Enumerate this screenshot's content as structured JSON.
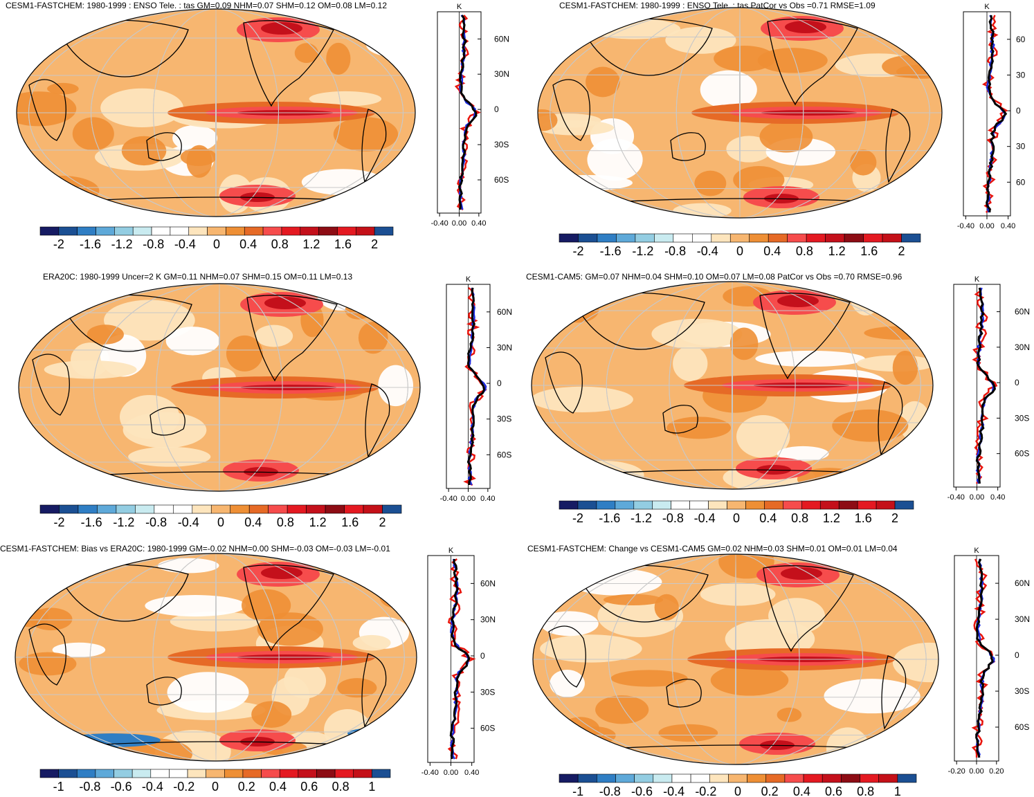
{
  "colors": {
    "scale": [
      "#161b63",
      "#1b4f93",
      "#2f7ec4",
      "#5ea9d9",
      "#93cde2",
      "#c9ebf0",
      "#ffffff",
      "#ffffff",
      "#fde5bd",
      "#f7b670",
      "#ee8f35",
      "#e66a26",
      "#f64c4c",
      "#e41921",
      "#c4101b",
      "#8d0c14",
      "#e41921",
      "#c41018",
      "#1b4f93"
    ],
    "land": "#000000",
    "grid": "#c8c8c8",
    "line_red": "#e8140c",
    "line_blue": "#1a2be0",
    "line_black": "#000000"
  },
  "panels": [
    {
      "title": "CESM1-FASTCHEM: 1980-1999 : ENSO Tele. : tas GM=0.09 NHM=0.07 SHM=0.12 OM=0.08 LM=0.12",
      "colorbar_labels": [
        "-2",
        "-1.6",
        "-1.2",
        "-0.8",
        "-0.4",
        "0",
        "0.4",
        "0.8",
        "1.2",
        "1.6",
        "2"
      ],
      "profile_unit": "K",
      "profile_xticks": [
        "-0.40",
        "0.00",
        "0.40"
      ],
      "lat_labels": [
        "60N",
        "30N",
        "0",
        "30S",
        "60S"
      ]
    },
    {
      "title": "CESM1-FASTCHEM: 1980-1999 : ENSO Tele. : tas PatCor vs Obs =0.71 RMSE=1.09",
      "colorbar_labels": [
        "-2",
        "-1.6",
        "-1.2",
        "-0.8",
        "-0.4",
        "0",
        "0.4",
        "0.8",
        "1.2",
        "1.6",
        "2"
      ],
      "profile_unit": "K",
      "profile_xticks": [
        "-0.40",
        "0.00",
        "0.40"
      ],
      "lat_labels": [
        "60",
        "30",
        "0",
        "30",
        "60"
      ]
    },
    {
      "title": "ERA20C: 1980-1999 Uncer=2 K GM=0.11 NHM=0.07 SHM=0.15 OM=0.11 LM=0.13",
      "colorbar_labels": [
        "-2",
        "-1.6",
        "-1.2",
        "-0.8",
        "-0.4",
        "0",
        "0.4",
        "0.8",
        "1.2",
        "1.6",
        "2"
      ],
      "profile_unit": "K",
      "profile_xticks": [
        "-0.40",
        "0.00",
        "0.40"
      ],
      "lat_labels": [
        "60N",
        "30N",
        "0",
        "30S",
        "60S"
      ]
    },
    {
      "title": "CESM1-CAM5: GM=0.07 NHM=0.04 SHM=0.10 OM=0.07 LM=0.08 PatCor vs Obs =0.70 RMSE=0.96",
      "colorbar_labels": [
        "-2",
        "-1.6",
        "-1.2",
        "-0.8",
        "-0.4",
        "0",
        "0.4",
        "0.8",
        "1.2",
        "1.6",
        "2"
      ],
      "profile_unit": "K",
      "profile_xticks": [
        "-0.40",
        "0.00",
        "0.40"
      ],
      "lat_labels": [
        "60N",
        "30N",
        "0",
        "30S",
        "60S"
      ]
    },
    {
      "title": "CESM1-FASTCHEM: Bias vs ERA20C: 1980-1999 GM=-0.02 NHM=0.00 SHM=-0.03 OM=-0.03 LM=-0.01",
      "colorbar_labels": [
        "-1",
        "-0.8",
        "-0.6",
        "-0.4",
        "-0.2",
        "0",
        "0.2",
        "0.4",
        "0.6",
        "0.8",
        "1"
      ],
      "profile_unit": "K",
      "profile_xticks": [
        "-0.40",
        "0.00",
        "0.40"
      ],
      "lat_labels": [
        "60N",
        "30N",
        "0",
        "30S",
        "60S"
      ]
    },
    {
      "title": "CESM1-FASTCHEM: Change vs CESM1-CAM5 GM=0.02 NHM=0.03 SHM=0.01 OM=0.01 LM=0.04",
      "colorbar_labels": [
        "-1",
        "-0.8",
        "-0.6",
        "-0.4",
        "-0.2",
        "0",
        "0.2",
        "0.4",
        "0.6",
        "0.8",
        "1"
      ],
      "profile_unit": "K",
      "profile_xticks": [
        "-0.20",
        "0.00",
        "0.20"
      ],
      "lat_labels": [
        "60N",
        "30N",
        "0",
        "30S",
        "60S"
      ]
    }
  ],
  "chart_data": [
    {
      "type": "heatmap",
      "title": "CESM1-FASTCHEM: 1980-1999 : ENSO Tele. : tas GM=0.09 NHM=0.07 SHM=0.12 OM=0.08 LM=0.12",
      "colorbar": {
        "min": -2,
        "max": 2,
        "ticks": [
          -2,
          -1.6,
          -1.2,
          -0.8,
          -0.4,
          0,
          0.4,
          0.8,
          1.2,
          1.6,
          2
        ]
      },
      "zonal_profile": {
        "unit": "K",
        "xlim": [
          -0.4,
          0.4
        ],
        "series_colors": [
          "red",
          "blue",
          "black"
        ]
      }
    },
    {
      "type": "heatmap",
      "title": "CESM1-FASTCHEM: 1980-1999 : ENSO Tele. : tas PatCor vs Obs =0.71 RMSE=1.09",
      "colorbar": {
        "min": -2,
        "max": 2,
        "ticks": [
          -2,
          -1.6,
          -1.2,
          -0.8,
          -0.4,
          0,
          0.4,
          0.8,
          1.2,
          1.6,
          2
        ]
      },
      "zonal_profile": {
        "unit": "K",
        "xlim": [
          -0.4,
          0.4
        ],
        "series_colors": [
          "red",
          "blue",
          "black"
        ]
      }
    },
    {
      "type": "heatmap",
      "title": "ERA20C: 1980-1999 Uncer=2 K GM=0.11 NHM=0.07 SHM=0.15 OM=0.11 LM=0.13",
      "colorbar": {
        "min": -2,
        "max": 2,
        "ticks": [
          -2,
          -1.6,
          -1.2,
          -0.8,
          -0.4,
          0,
          0.4,
          0.8,
          1.2,
          1.6,
          2
        ]
      },
      "zonal_profile": {
        "unit": "K",
        "xlim": [
          -0.4,
          0.4
        ],
        "series_colors": [
          "red",
          "blue",
          "black"
        ]
      }
    },
    {
      "type": "heatmap",
      "title": "CESM1-CAM5: GM=0.07 NHM=0.04 SHM=0.10 OM=0.07 LM=0.08 PatCor vs Obs =0.70 RMSE=0.96",
      "colorbar": {
        "min": -2,
        "max": 2,
        "ticks": [
          -2,
          -1.6,
          -1.2,
          -0.8,
          -0.4,
          0,
          0.4,
          0.8,
          1.2,
          1.6,
          2
        ]
      },
      "zonal_profile": {
        "unit": "K",
        "xlim": [
          -0.4,
          0.4
        ],
        "series_colors": [
          "red",
          "blue",
          "black"
        ]
      }
    },
    {
      "type": "heatmap",
      "title": "CESM1-FASTCHEM: Bias vs ERA20C: 1980-1999 GM=-0.02 NHM=0.00 SHM=-0.03 OM=-0.03 LM=-0.01",
      "colorbar": {
        "min": -1,
        "max": 1,
        "ticks": [
          -1,
          -0.8,
          -0.6,
          -0.4,
          -0.2,
          0,
          0.2,
          0.4,
          0.6,
          0.8,
          1
        ]
      },
      "zonal_profile": {
        "unit": "K",
        "xlim": [
          -0.4,
          0.4
        ],
        "series_colors": [
          "red",
          "blue",
          "black"
        ]
      }
    },
    {
      "type": "heatmap",
      "title": "CESM1-FASTCHEM: Change vs CESM1-CAM5 GM=0.02 NHM=0.03 SHM=0.01 OM=0.01 LM=0.04",
      "colorbar": {
        "min": -1,
        "max": 1,
        "ticks": [
          -1,
          -0.8,
          -0.6,
          -0.4,
          -0.2,
          0,
          0.2,
          0.4,
          0.6,
          0.8,
          1
        ]
      },
      "zonal_profile": {
        "unit": "K",
        "xlim": [
          -0.2,
          0.2
        ],
        "series_colors": [
          "red",
          "blue",
          "black"
        ]
      }
    }
  ]
}
